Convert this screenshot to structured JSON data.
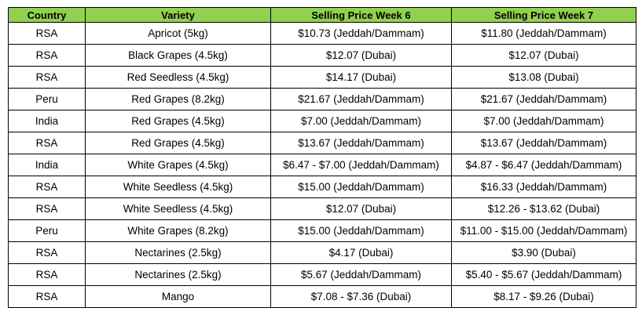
{
  "table": {
    "headers": [
      "Country",
      "Variety",
      "Selling Price Week 6",
      "Selling Price Week 7"
    ],
    "header_bg": "#92d050",
    "rows": [
      [
        "RSA",
        "Apricot (5kg)",
        "$10.73 (Jeddah/Dammam)",
        "$11.80 (Jeddah/Dammam)"
      ],
      [
        "RSA",
        "Black Grapes (4.5kg)",
        "$12.07 (Dubai)",
        "$12.07 (Dubai)"
      ],
      [
        "RSA",
        "Red Seedless (4.5kg)",
        "$14.17 (Dubai)",
        "$13.08 (Dubai)"
      ],
      [
        "Peru",
        "Red Grapes (8.2kg)",
        "$21.67 (Jeddah/Dammam)",
        "$21.67 (Jeddah/Dammam)"
      ],
      [
        "India",
        "Red Grapes (4.5kg)",
        "$7.00 (Jeddah/Dammam)",
        "$7.00 (Jeddah/Dammam)"
      ],
      [
        "RSA",
        "Red Grapes (4.5kg)",
        "$13.67 (Jeddah/Dammam)",
        "$13.67 (Jeddah/Dammam)"
      ],
      [
        "India",
        "White Grapes (4.5kg)",
        "$6.47 - $7.00 (Jeddah/Dammam)",
        "$4.87 - $6.47 (Jeddah/Dammam)"
      ],
      [
        "RSA",
        "White Seedless (4.5kg)",
        "$15.00 (Jeddah/Dammam)",
        "$16.33 (Jeddah/Dammam)"
      ],
      [
        "RSA",
        "White Seedless (4.5kg)",
        "$12.07 (Dubai)",
        "$12.26 - $13.62 (Dubai)"
      ],
      [
        "Peru",
        "White Grapes (8.2kg)",
        "$15.00 (Jeddah/Dammam)",
        "$11.00 - $15.00 (Jeddah/Dammam)"
      ],
      [
        "RSA",
        "Nectarines (2.5kg)",
        "$4.17 (Dubai)",
        "$3.90 (Dubai)"
      ],
      [
        "RSA",
        "Nectarines (2.5kg)",
        "$5.67 (Jeddah/Dammam)",
        "$5.40 - $5.67 (Jeddah/Dammam)"
      ],
      [
        "RSA",
        "Mango",
        "$7.08 - $7.36 (Dubai)",
        "$8.17 - $9.26 (Dubai)"
      ]
    ]
  }
}
